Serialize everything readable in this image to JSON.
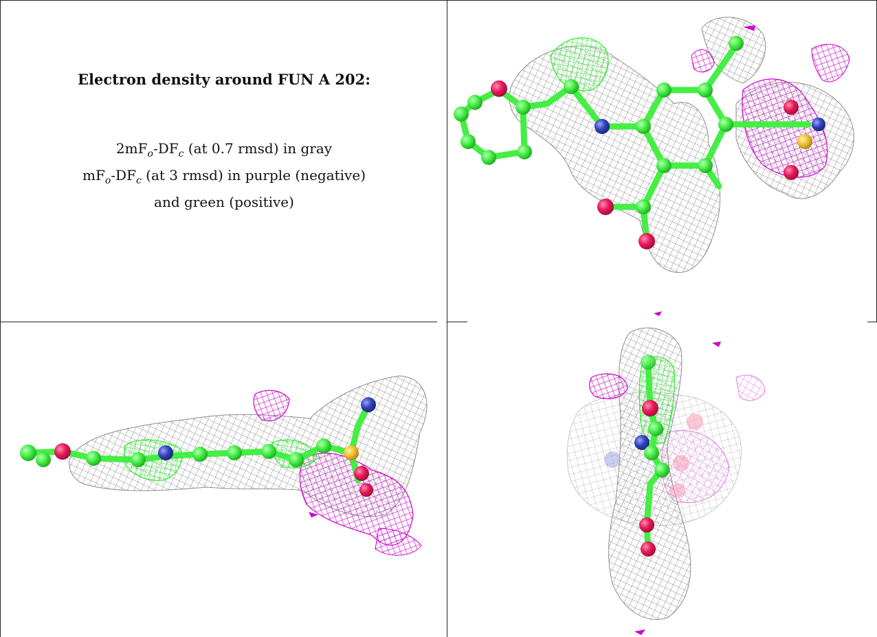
{
  "legend": {
    "title": "Electron density around FUN A 202:",
    "line1": {
      "prefix": "2mF",
      "sub1": "o",
      "mid": "-DF",
      "sub2": "c",
      "suffix": " (at 0.7 rmsd) in gray"
    },
    "line2": {
      "prefix": "mF",
      "sub1": "o",
      "mid": "-DF",
      "sub2": "c",
      "suffix": " (at 3 rmsd) in purple (negative)"
    },
    "line3": "and green (positive)"
  },
  "colors": {
    "mesh_gray": "#8c8c8c",
    "mesh_purple": "#cc00cc",
    "mesh_green": "#33ee33",
    "carbon": "#44ee44",
    "oxygen": "#e8195a",
    "nitrogen": "#3344bb",
    "sulfur": "#f2c230"
  },
  "panels": [
    {
      "view": "top-right"
    },
    {
      "view": "bottom-left"
    },
    {
      "view": "bottom-right"
    }
  ]
}
